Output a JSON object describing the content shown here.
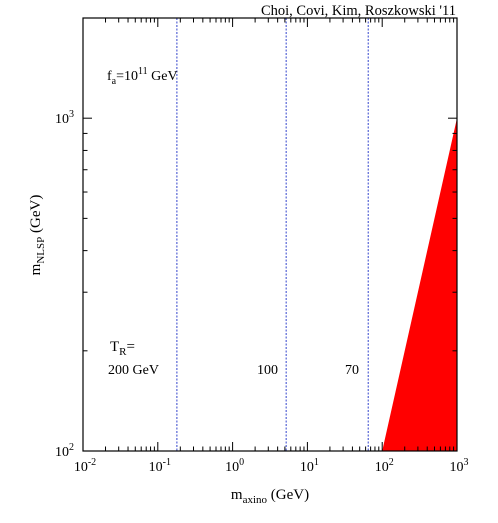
{
  "chart_data": {
    "type": "area",
    "credit": "Choi, Covi, Kim, Roszkowski '11",
    "xlabel": {
      "main": "m",
      "sub": "axino",
      "unit": " (GeV)"
    },
    "ylabel": {
      "main": "m",
      "sub": "NLSP",
      "unit": " (GeV)"
    },
    "xscale": "log",
    "yscale": "log",
    "xlim": [
      0.01,
      1000
    ],
    "ylim": [
      100,
      2000
    ],
    "x_ticks": [
      {
        "value": 0.01,
        "base": "10",
        "exp": "-2"
      },
      {
        "value": 0.1,
        "base": "10",
        "exp": "-1"
      },
      {
        "value": 1,
        "base": "10",
        "exp": "0"
      },
      {
        "value": 10,
        "base": "10",
        "exp": "1"
      },
      {
        "value": 100,
        "base": "10",
        "exp": "2"
      },
      {
        "value": 1000,
        "base": "10",
        "exp": "3"
      }
    ],
    "y_ticks": [
      {
        "value": 100,
        "base": "10",
        "exp": "2"
      },
      {
        "value": 1000,
        "base": "10",
        "exp": "3"
      }
    ],
    "annotations": {
      "fa": {
        "main": "f",
        "sub": "a",
        "mid": "=10",
        "exp": "11",
        "unit": " GeV"
      },
      "tr": {
        "main": "T",
        "sub": "R",
        "tail": "="
      }
    },
    "series": [
      {
        "label": "200 GeV",
        "x": 0.18,
        "color": "#3344cc"
      },
      {
        "label": "100",
        "x": 5.2,
        "color": "#3344cc"
      },
      {
        "label": "70",
        "x": 65,
        "color": "#3344cc"
      }
    ],
    "excluded_region": {
      "color": "#ff0000",
      "polygon": [
        [
          100,
          100
        ],
        [
          1000,
          100
        ],
        [
          1000,
          1000
        ]
      ]
    }
  }
}
